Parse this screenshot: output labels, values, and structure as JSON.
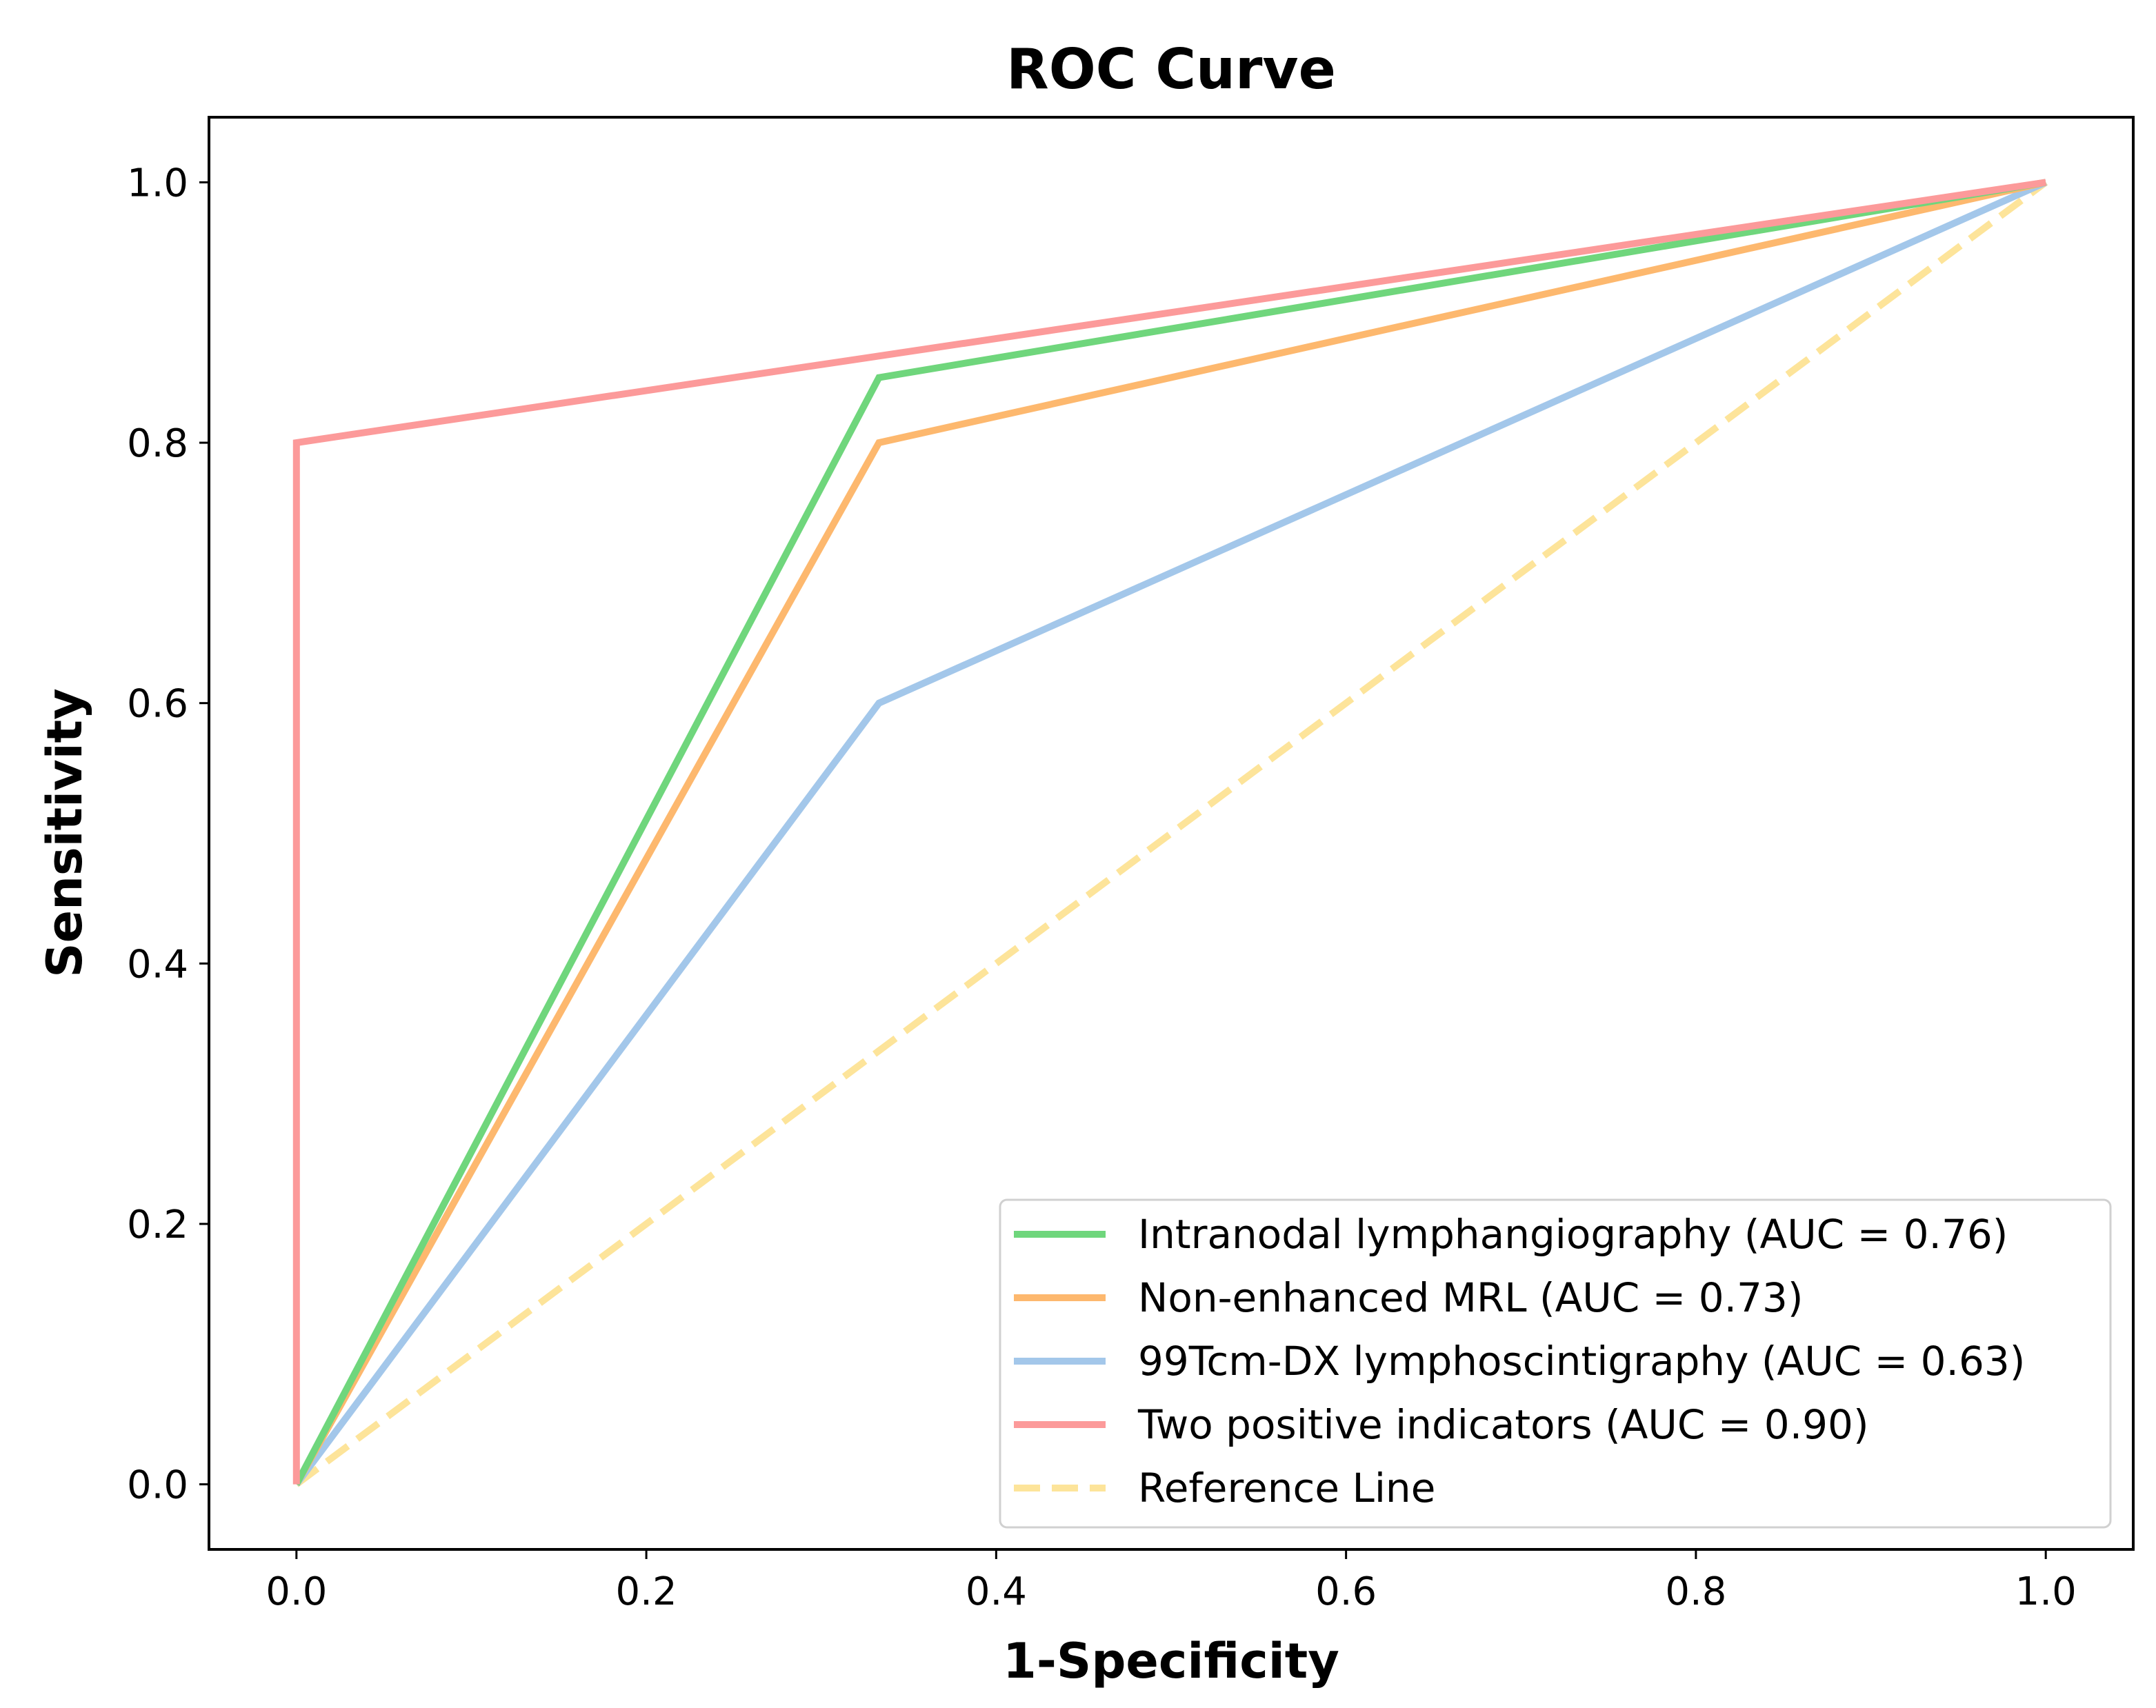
{
  "chart_data": {
    "type": "line",
    "title": "ROC Curve",
    "xlabel": "1-Specificity",
    "ylabel": "Sensitivity",
    "xlim": [
      -0.05,
      1.05
    ],
    "ylim": [
      -0.05,
      1.05
    ],
    "xticks": [
      0.0,
      0.2,
      0.4,
      0.6,
      0.8,
      1.0
    ],
    "yticks": [
      0.0,
      0.2,
      0.4,
      0.6,
      0.8,
      1.0
    ],
    "xtick_labels": [
      "0.0",
      "0.2",
      "0.4",
      "0.6",
      "0.8",
      "1.0"
    ],
    "ytick_labels": [
      "0.0",
      "0.2",
      "0.4",
      "0.6",
      "0.8",
      "1.0"
    ],
    "grid": false,
    "legend_position": "lower-right",
    "series": [
      {
        "name": "Intranodal lymphangiography (AUC = 0.76)",
        "color": "#6fd67c",
        "dash": "solid",
        "x": [
          0.0,
          0.333,
          1.0
        ],
        "y": [
          0.0,
          0.85,
          1.0
        ]
      },
      {
        "name": "Non-enhanced MRL (AUC = 0.73)",
        "color": "#fdb86e",
        "dash": "solid",
        "x": [
          0.0,
          0.333,
          1.0
        ],
        "y": [
          0.0,
          0.8,
          1.0
        ]
      },
      {
        "name": "99Tcm-DX lymphoscintigraphy (AUC = 0.63)",
        "color": "#a3c7ea",
        "dash": "solid",
        "x": [
          0.0,
          0.333,
          1.0
        ],
        "y": [
          0.0,
          0.6,
          1.0
        ]
      },
      {
        "name": "Two positive indicators (AUC = 0.90)",
        "color": "#fc9a9a",
        "dash": "solid",
        "x": [
          0.0,
          0.0,
          1.0
        ],
        "y": [
          0.0,
          0.8,
          1.0
        ]
      },
      {
        "name": "Reference Line",
        "color": "#fde49a",
        "dash": "dashed",
        "x": [
          0.0,
          1.0
        ],
        "y": [
          0.0,
          1.0
        ]
      }
    ]
  }
}
